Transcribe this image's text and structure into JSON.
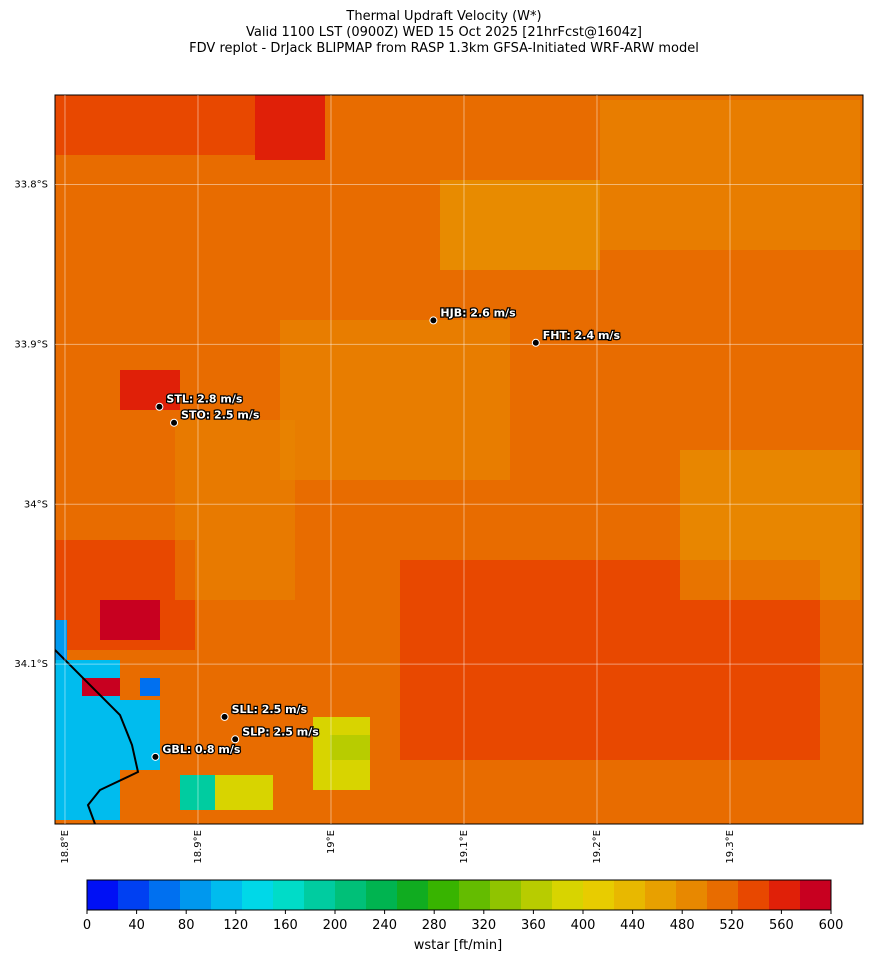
{
  "title": [
    "Thermal Updraft Velocity (W*)",
    "Valid 1100 LST (0900Z) WED 15 Oct 2025 [21hrFcst@1604z]",
    "FDV replot - DrJack BLIPMAP from RASP 1.3km GFSA-Initiated WRF-ARW model"
  ],
  "map": {
    "xlim": [
      18.7925,
      19.4
    ],
    "ylim": [
      -33.744,
      -34.2
    ],
    "xticks": [
      {
        "value": 18.8,
        "label": "18.8°E"
      },
      {
        "value": 18.9,
        "label": "18.9°E"
      },
      {
        "value": 19.0,
        "label": "19°E"
      },
      {
        "value": 19.1,
        "label": "19.1°E"
      },
      {
        "value": 19.2,
        "label": "19.2°E"
      },
      {
        "value": 19.3,
        "label": "19.3°E"
      }
    ],
    "yticks": [
      {
        "value": -33.8,
        "label": "33.8°S"
      },
      {
        "value": -33.9,
        "label": "33.9°S"
      },
      {
        "value": -34.0,
        "label": "34°S"
      },
      {
        "value": -34.1,
        "label": "34.1°S"
      }
    ],
    "grid": true,
    "stations": [
      {
        "label": "HJB: 2.6 m/s",
        "lon": 19.077,
        "lat": -33.885
      },
      {
        "label": "FHT: 2.4 m/s",
        "lon": 19.154,
        "lat": -33.899
      },
      {
        "label": "STL: 2.8 m/s",
        "lon": 18.871,
        "lat": -33.939
      },
      {
        "label": "STO: 2.5 m/s",
        "lon": 18.882,
        "lat": -33.949
      },
      {
        "label": "SLL: 2.5 m/s",
        "lon": 18.92,
        "lat": -34.133
      },
      {
        "label": "SLP: 2.5 m/s",
        "lon": 18.928,
        "lat": -34.147
      },
      {
        "label": "GBL: 0.8 m/s",
        "lon": 18.868,
        "lat": -34.158
      }
    ]
  },
  "colorbar": {
    "label": "wstar [ft/min]",
    "lim": [
      0,
      600
    ],
    "ticks": [
      0,
      40,
      80,
      120,
      160,
      200,
      240,
      280,
      320,
      360,
      400,
      440,
      480,
      520,
      560,
      600
    ],
    "colors": [
      "#0010f5",
      "#0040f2",
      "#0070f0",
      "#0098ee",
      "#00bcee",
      "#00d8e8",
      "#00dcc8",
      "#00cca0",
      "#00c078",
      "#00b450",
      "#10ac20",
      "#38b400",
      "#64bc00",
      "#90c400",
      "#b8cc00",
      "#d8d400",
      "#e8cc00",
      "#e8b800",
      "#e8a000",
      "#e88800",
      "#e86c00",
      "#e84800",
      "#e02008",
      "#c80020"
    ]
  }
}
